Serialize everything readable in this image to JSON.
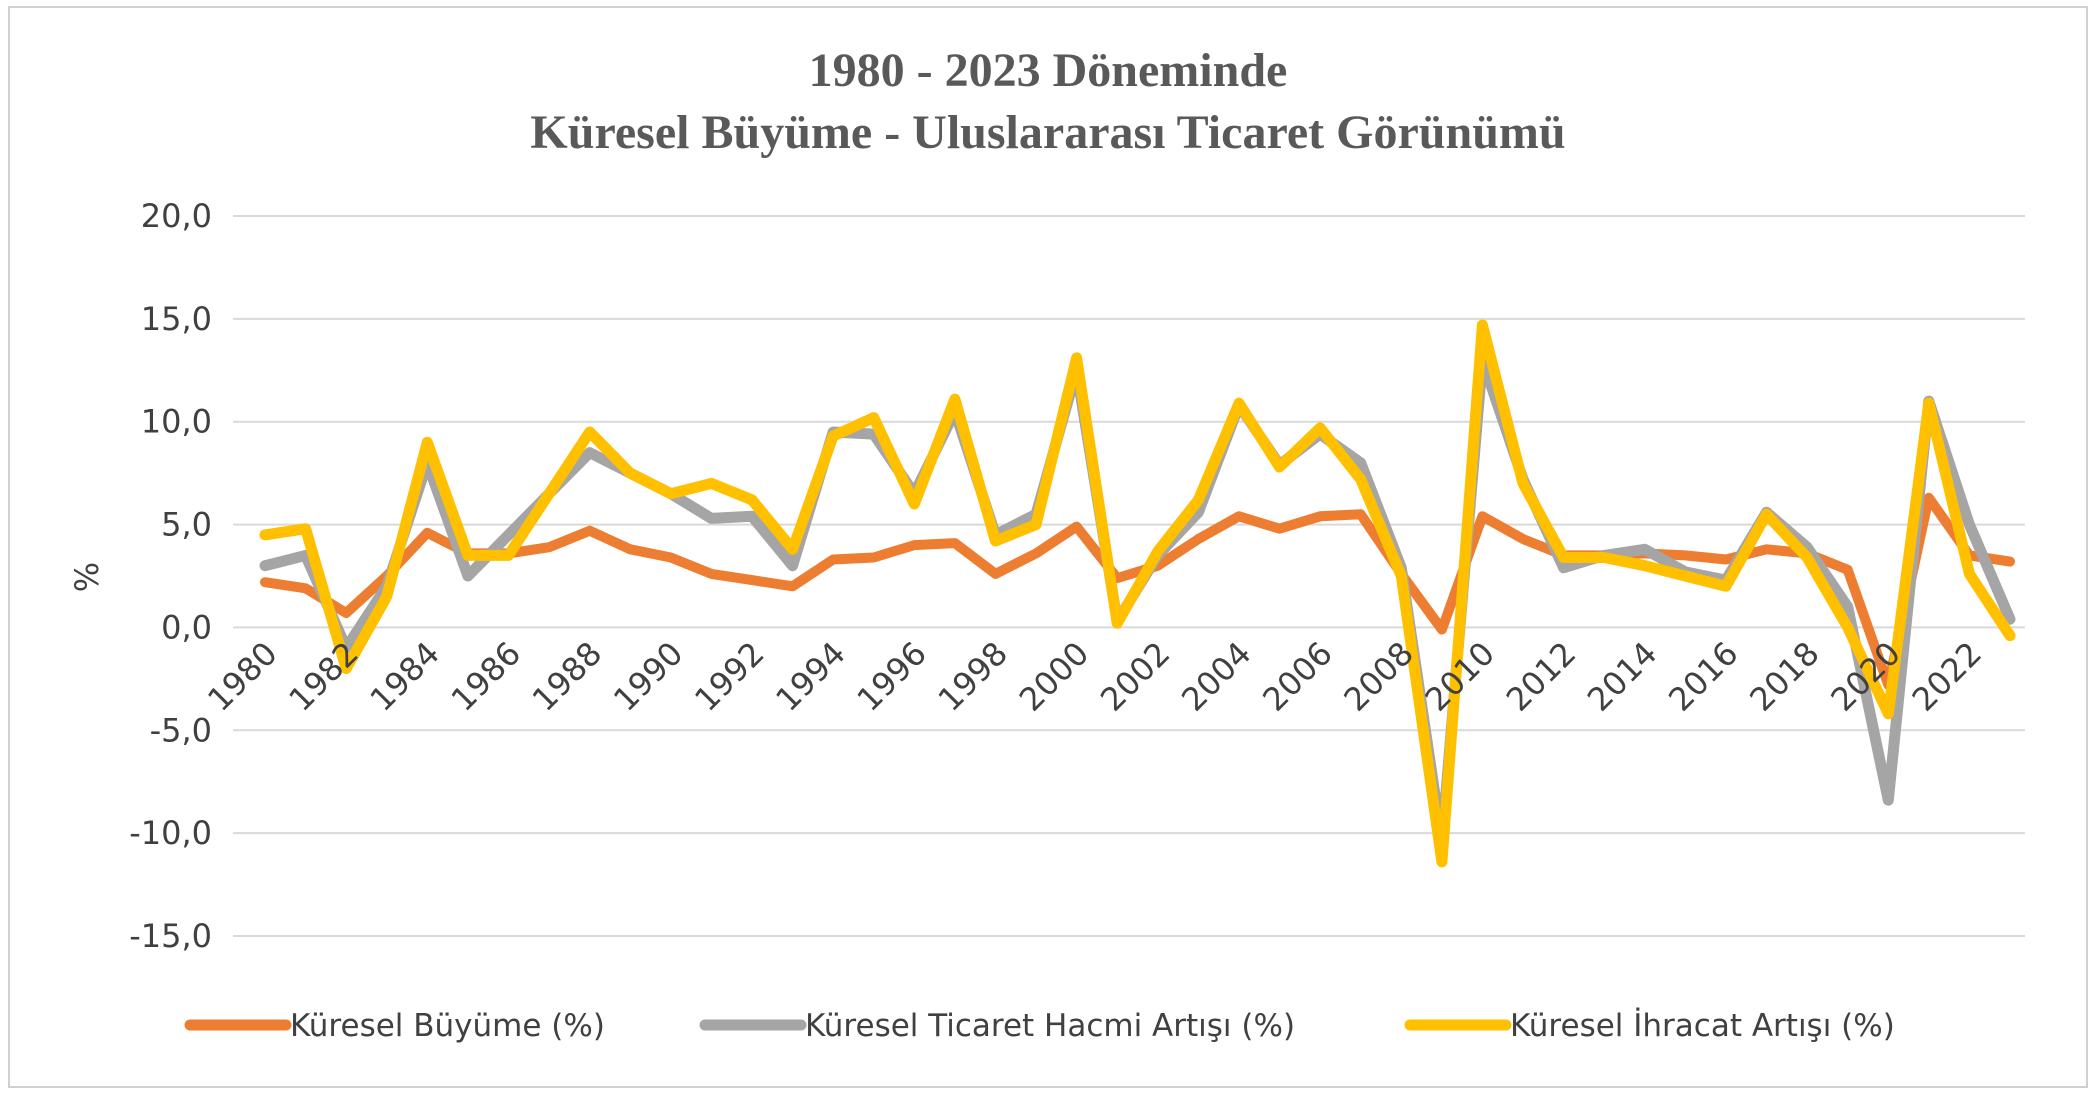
{
  "chart_data": {
    "type": "line",
    "title": [
      "1980 - 2023 Döneminde",
      "Küresel Büyüme - Uluslararası Ticaret Görünümü"
    ],
    "ylabel": "%",
    "xlabel": "",
    "ylim": [
      -15,
      20
    ],
    "yticks": [
      20,
      15,
      10,
      5,
      0,
      -5,
      -10,
      -15
    ],
    "ytick_labels": [
      "20,0",
      "15,0",
      "10,0",
      "5,0",
      "0,0",
      "-5,0",
      "-10,0",
      "-15,0"
    ],
    "x": [
      1980,
      1981,
      1982,
      1983,
      1984,
      1985,
      1986,
      1987,
      1988,
      1989,
      1990,
      1991,
      1992,
      1993,
      1994,
      1995,
      1996,
      1997,
      1998,
      1999,
      2000,
      2001,
      2002,
      2003,
      2004,
      2005,
      2006,
      2007,
      2008,
      2009,
      2010,
      2011,
      2012,
      2013,
      2014,
      2015,
      2016,
      2017,
      2018,
      2019,
      2020,
      2021,
      2022,
      2023
    ],
    "xtick_labels": [
      "1980",
      "1982",
      "1984",
      "1986",
      "1988",
      "1990",
      "1992",
      "1994",
      "1996",
      "1998",
      "2000",
      "2002",
      "2004",
      "2006",
      "2008",
      "2010",
      "2012",
      "2014",
      "2016",
      "2018",
      "2020",
      "2022"
    ],
    "grid": true,
    "legend_position": "bottom",
    "series": [
      {
        "name": "Küresel Büyüme (%)",
        "color": "#ED7D31",
        "values": [
          2.2,
          1.9,
          0.7,
          2.5,
          4.6,
          3.6,
          3.6,
          3.9,
          4.7,
          3.8,
          3.4,
          2.6,
          2.3,
          2.0,
          3.3,
          3.4,
          4.0,
          4.1,
          2.6,
          3.6,
          4.9,
          2.4,
          3.0,
          4.3,
          5.4,
          4.8,
          5.4,
          5.5,
          2.6,
          -0.1,
          5.4,
          4.3,
          3.5,
          3.5,
          3.6,
          3.5,
          3.3,
          3.8,
          3.6,
          2.8,
          -2.8,
          6.3,
          3.5,
          3.2
        ]
      },
      {
        "name": "Küresel Ticaret Hacmi Artışı (%)",
        "color": "#A5A5A5",
        "values": [
          3.0,
          3.5,
          -1.0,
          2.0,
          8.0,
          2.5,
          4.5,
          6.5,
          8.5,
          7.5,
          6.5,
          5.3,
          5.4,
          3.0,
          9.5,
          9.4,
          6.5,
          10.5,
          4.5,
          5.5,
          12.5,
          0.3,
          3.5,
          5.6,
          10.8,
          7.9,
          9.4,
          8.0,
          2.9,
          -10.4,
          13.0,
          7.2,
          2.9,
          3.5,
          3.8,
          2.7,
          2.3,
          5.6,
          3.9,
          1.0,
          -8.4,
          11.0,
          5.0,
          0.4
        ]
      },
      {
        "name": "Küresel İhracat Artışı (%)",
        "color": "#FFC000",
        "values": [
          4.5,
          4.8,
          -2.0,
          1.5,
          9.0,
          3.5,
          3.5,
          6.5,
          9.5,
          7.5,
          6.5,
          7.0,
          6.2,
          3.8,
          9.3,
          10.2,
          6.0,
          11.1,
          4.2,
          5.0,
          13.1,
          0.2,
          3.7,
          6.2,
          10.9,
          7.8,
          9.7,
          7.2,
          2.5,
          -11.4,
          14.7,
          7.0,
          3.4,
          3.4,
          3.0,
          2.5,
          2.0,
          5.5,
          3.4,
          0.0,
          -4.2,
          10.9,
          2.6,
          -0.4
        ]
      }
    ]
  }
}
